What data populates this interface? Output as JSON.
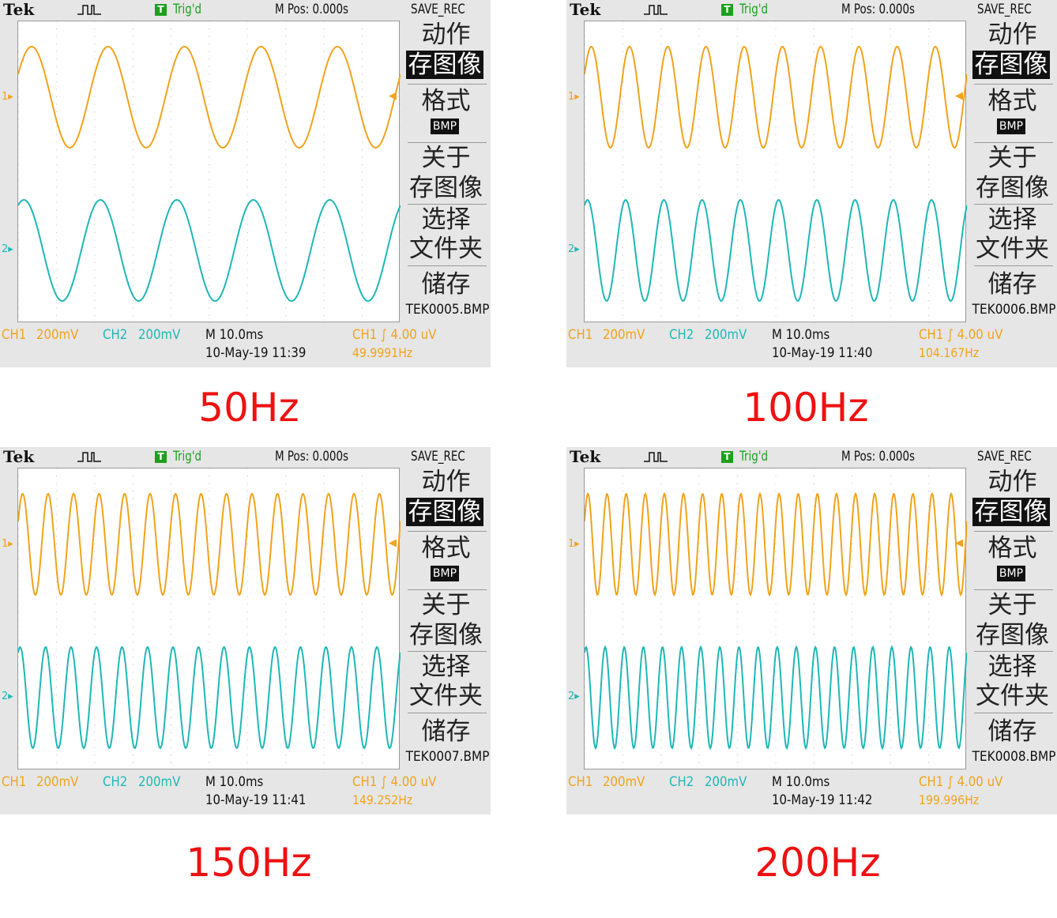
{
  "colors": {
    "ch1": "#f0a31c",
    "ch2": "#1fb7b7",
    "trig": "#1da01d",
    "caption": "#ee1111"
  },
  "panels": [
    {
      "brand": "Tek",
      "trig_icon": "T",
      "trig_status": "Trig'd",
      "mpos": "M Pos: 0.000s",
      "save_button": "SAVE_REC",
      "menu": {
        "action": "动作",
        "save_image": "存图像",
        "format": "格式",
        "format_value": "BMP",
        "about": "关于",
        "about_sub": "存图像",
        "select": "选择",
        "select_sub": "文件夹",
        "store": "储存",
        "file": "TEK0005.BMP"
      },
      "ch1_label": "CH1",
      "ch1_scale": "200mV",
      "ch2_label": "CH2",
      "ch2_scale": "200mV",
      "timebase": "M 10.0ms",
      "datetime": "10-May-19 11:39",
      "trigger": "CH1 ∫ 4.00 uV",
      "freq_readout": "49.9991Hz",
      "signal_freq_hz": 50,
      "caption": "50Hz"
    },
    {
      "brand": "Tek",
      "trig_icon": "T",
      "trig_status": "Trig'd",
      "mpos": "M Pos: 0.000s",
      "save_button": "SAVE_REC",
      "menu": {
        "action": "动作",
        "save_image": "存图像",
        "format": "格式",
        "format_value": "BMP",
        "about": "关于",
        "about_sub": "存图像",
        "select": "选择",
        "select_sub": "文件夹",
        "store": "储存",
        "file": "TEK0006.BMP"
      },
      "ch1_label": "CH1",
      "ch1_scale": "200mV",
      "ch2_label": "CH2",
      "ch2_scale": "200mV",
      "timebase": "M 10.0ms",
      "datetime": "10-May-19 11:40",
      "trigger": "CH1 ∫ 4.00 uV",
      "freq_readout": "104.167Hz",
      "signal_freq_hz": 100,
      "caption": "100Hz"
    },
    {
      "brand": "Tek",
      "trig_icon": "T",
      "trig_status": "Trig'd",
      "mpos": "M Pos: 0.000s",
      "save_button": "SAVE_REC",
      "menu": {
        "action": "动作",
        "save_image": "存图像",
        "format": "格式",
        "format_value": "BMP",
        "about": "关于",
        "about_sub": "存图像",
        "select": "选择",
        "select_sub": "文件夹",
        "store": "储存",
        "file": "TEK0007.BMP"
      },
      "ch1_label": "CH1",
      "ch1_scale": "200mV",
      "ch2_label": "CH2",
      "ch2_scale": "200mV",
      "timebase": "M 10.0ms",
      "datetime": "10-May-19 11:41",
      "trigger": "CH1 ∫ 4.00 uV",
      "freq_readout": "149.252Hz",
      "signal_freq_hz": 150,
      "caption": "150Hz"
    },
    {
      "brand": "Tek",
      "trig_icon": "T",
      "trig_status": "Trig'd",
      "mpos": "M Pos: 0.000s",
      "save_button": "SAVE_REC",
      "menu": {
        "action": "动作",
        "save_image": "存图像",
        "format": "格式",
        "format_value": "BMP",
        "about": "关于",
        "about_sub": "存图像",
        "select": "选择",
        "select_sub": "文件夹",
        "store": "储存",
        "file": "TEK0008.BMP"
      },
      "ch1_label": "CH1",
      "ch1_scale": "200mV",
      "ch2_label": "CH2",
      "ch2_scale": "200mV",
      "timebase": "M 10.0ms",
      "datetime": "10-May-19 11:42",
      "trigger": "CH1 ∫ 4.00 uV",
      "freq_readout": "199.996Hz",
      "signal_freq_hz": 200,
      "caption": "200Hz"
    }
  ]
}
